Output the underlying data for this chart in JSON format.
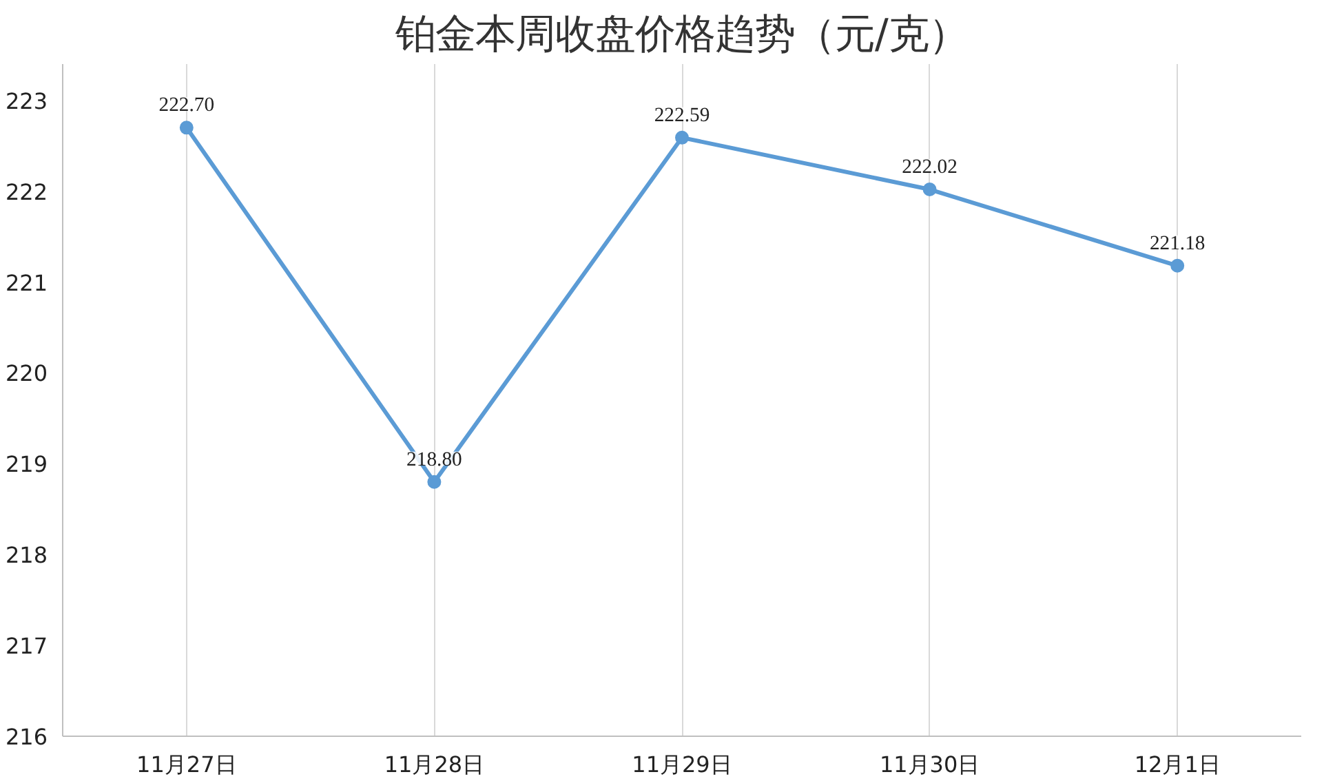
{
  "chart_data": {
    "type": "line",
    "title": "铂金本周收盘价格趋势（元/克）",
    "categories": [
      "11月27日",
      "11月28日",
      "11月29日",
      "11月30日",
      "12月1日"
    ],
    "values": [
      222.7,
      218.8,
      222.59,
      222.02,
      221.18
    ],
    "value_labels": [
      "222.70",
      "218.80",
      "222.59",
      "222.02",
      "221.18"
    ],
    "color": "#5b9bd5",
    "ylim": [
      216,
      223.4
    ],
    "yticks": [
      216,
      217,
      218,
      219,
      220,
      221,
      222,
      223
    ],
    "grid": "x",
    "marker": "circle",
    "line_style": "solid"
  }
}
